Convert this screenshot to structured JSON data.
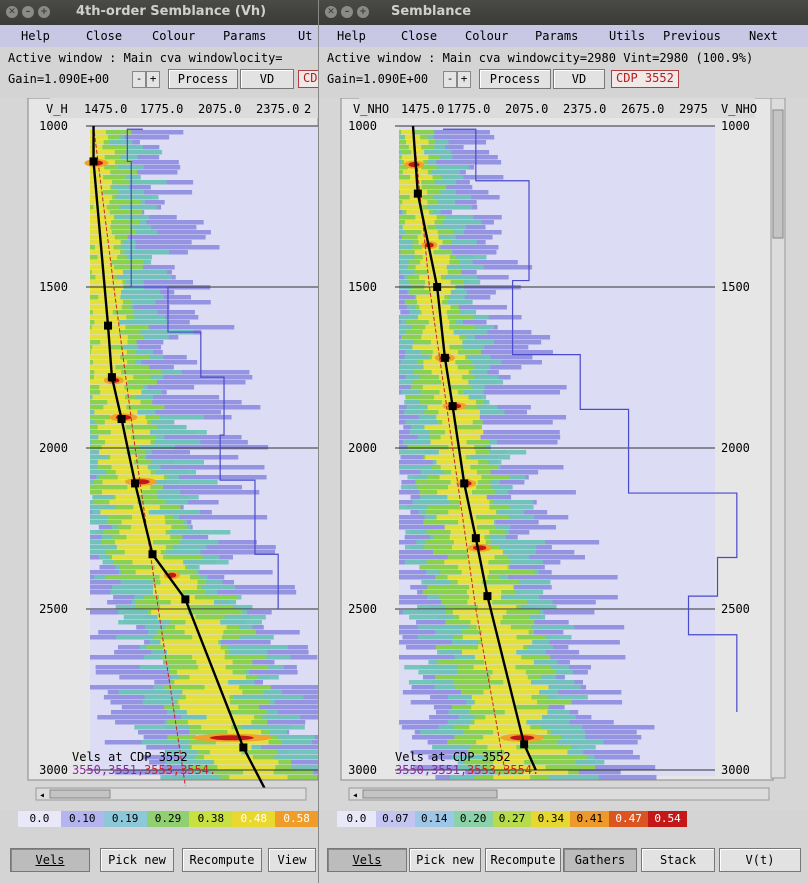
{
  "left": {
    "title": "4th-order Semblance (Vh)",
    "menu": [
      "Help",
      "Close",
      "Colour",
      "Params",
      "Ut"
    ],
    "info": "Active window : Main cva windowlocity=",
    "gain": "Gain=1.090E+00",
    "minus": "-",
    "plus": "+",
    "process": "Process",
    "vd": "VD",
    "cdp": "CD",
    "axis_label": "V_H",
    "x_ticks": [
      "1475.0",
      "1775.0",
      "2075.0",
      "2375.0",
      "2"
    ],
    "y_ticks": [
      "1000",
      "1500",
      "2000",
      "2500",
      "3000"
    ],
    "vels_label": "Vels at CDP  3552",
    "cdp_list_a": "3550,3551,",
    "cdp_list_b": "3553,3554.",
    "colorbar": [
      "0.0",
      "0.10",
      "0.19",
      "0.29",
      "0.38",
      "0.48",
      "0.58"
    ],
    "buttons": [
      "Vels",
      "Pick new",
      "Recompute",
      "View"
    ]
  },
  "right": {
    "title": "Semblance",
    "menu": [
      "Help",
      "Close",
      "Colour",
      "Params",
      "Utils",
      "Previous",
      "Next"
    ],
    "info": "Active window : Main cva windowcity=2980  Vint=2980 (100.9%)",
    "gain": "Gain=1.090E+00",
    "minus": "-",
    "plus": "+",
    "process": "Process",
    "vd": "VD",
    "cdp": "CDP 3552",
    "axis_label_left": "V_NHO",
    "axis_label_right": "V_NHO",
    "x_ticks": [
      "1475.0",
      "1775.0",
      "2075.0",
      "2375.0",
      "2675.0",
      "2975"
    ],
    "y_ticks": [
      "1000",
      "1500",
      "2000",
      "2500",
      "3000"
    ],
    "vels_label": "Vels at CDP  3552",
    "cdp_list_a": "3550,3551,",
    "cdp_list_b": "3553,3554.",
    "colorbar": [
      "0.0",
      "0.07",
      "0.14",
      "0.20",
      "0.27",
      "0.34",
      "0.41",
      "0.47",
      "0.54"
    ],
    "buttons": [
      "Vels",
      "Pick new",
      "Recompute",
      "Gathers",
      "Stack",
      "V(t)"
    ]
  },
  "colors": {
    "titlebar": "#3d3d3a",
    "menubar": "#c8c8e4",
    "plot_bg": "#dcdcf4",
    "pick_line": "#000000",
    "interval_line": "#4a4acc",
    "trend_line": "#cc2222"
  }
}
